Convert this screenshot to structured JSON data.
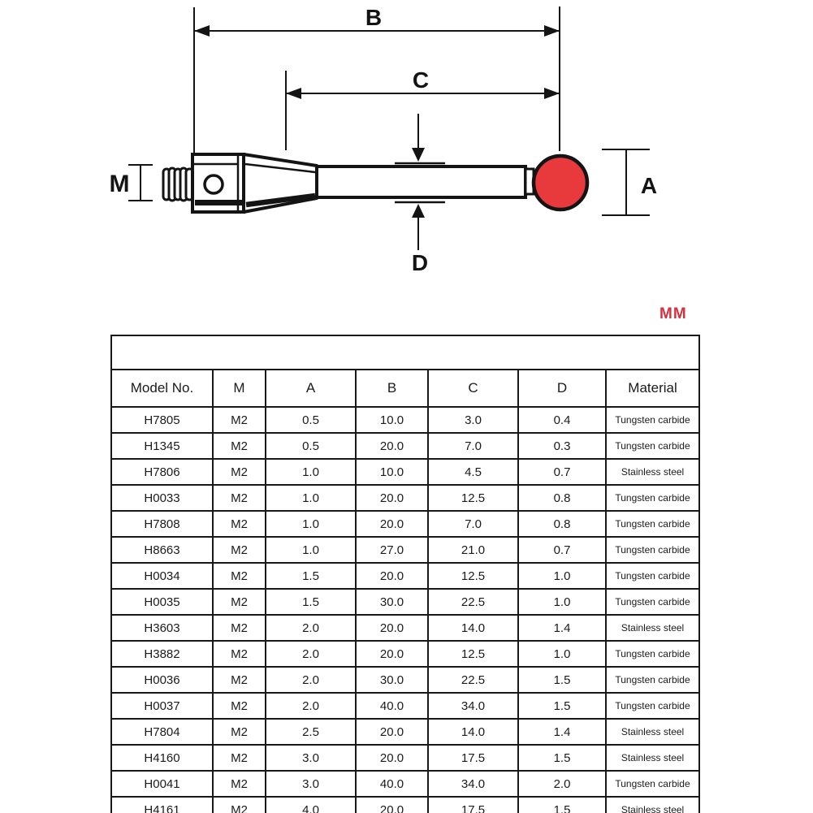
{
  "diagram": {
    "dimension_labels": {
      "b": "B",
      "c": "C",
      "d": "D",
      "m": "M",
      "a": "A"
    },
    "unit_label": "MM",
    "colors": {
      "line": "#141414",
      "ball_red": "#e8393c",
      "unit_red": "#d5303e"
    },
    "parts": {
      "thread": "threaded-stud",
      "body": "stylus-holder-body",
      "cone": "taper-section",
      "stem": "stylus-stem",
      "ball": "ruby-ball-tip"
    }
  },
  "table": {
    "columns": [
      "Model No.",
      "M",
      "A",
      "B",
      "C",
      "D",
      "Material"
    ],
    "rows": [
      [
        "H7805",
        "M2",
        "0.5",
        "10.0",
        "3.0",
        "0.4",
        "Tungsten carbide"
      ],
      [
        "H1345",
        "M2",
        "0.5",
        "20.0",
        "7.0",
        "0.3",
        "Tungsten carbide"
      ],
      [
        "H7806",
        "M2",
        "1.0",
        "10.0",
        "4.5",
        "0.7",
        "Stainless steel"
      ],
      [
        "H0033",
        "M2",
        "1.0",
        "20.0",
        "12.5",
        "0.8",
        "Tungsten carbide"
      ],
      [
        "H7808",
        "M2",
        "1.0",
        "20.0",
        "7.0",
        "0.8",
        "Tungsten carbide"
      ],
      [
        "H8663",
        "M2",
        "1.0",
        "27.0",
        "21.0",
        "0.7",
        "Tungsten carbide"
      ],
      [
        "H0034",
        "M2",
        "1.5",
        "20.0",
        "12.5",
        "1.0",
        "Tungsten carbide"
      ],
      [
        "H0035",
        "M2",
        "1.5",
        "30.0",
        "22.5",
        "1.0",
        "Tungsten carbide"
      ],
      [
        "H3603",
        "M2",
        "2.0",
        "20.0",
        "14.0",
        "1.4",
        "Stainless steel"
      ],
      [
        "H3882",
        "M2",
        "2.0",
        "20.0",
        "12.5",
        "1.0",
        "Tungsten carbide"
      ],
      [
        "H0036",
        "M2",
        "2.0",
        "30.0",
        "22.5",
        "1.5",
        "Tungsten carbide"
      ],
      [
        "H0037",
        "M2",
        "2.0",
        "40.0",
        "34.0",
        "1.5",
        "Tungsten carbide"
      ],
      [
        "H7804",
        "M2",
        "2.5",
        "20.0",
        "14.0",
        "1.4",
        "Stainless steel"
      ],
      [
        "H4160",
        "M2",
        "3.0",
        "20.0",
        "17.5",
        "1.5",
        "Stainless steel"
      ],
      [
        "H0041",
        "M2",
        "3.0",
        "40.0",
        "34.0",
        "2.0",
        "Tungsten carbide"
      ],
      [
        "H4161",
        "M2",
        "4.0",
        "20.0",
        "17.5",
        "1.5",
        "Stainless steel"
      ]
    ]
  }
}
